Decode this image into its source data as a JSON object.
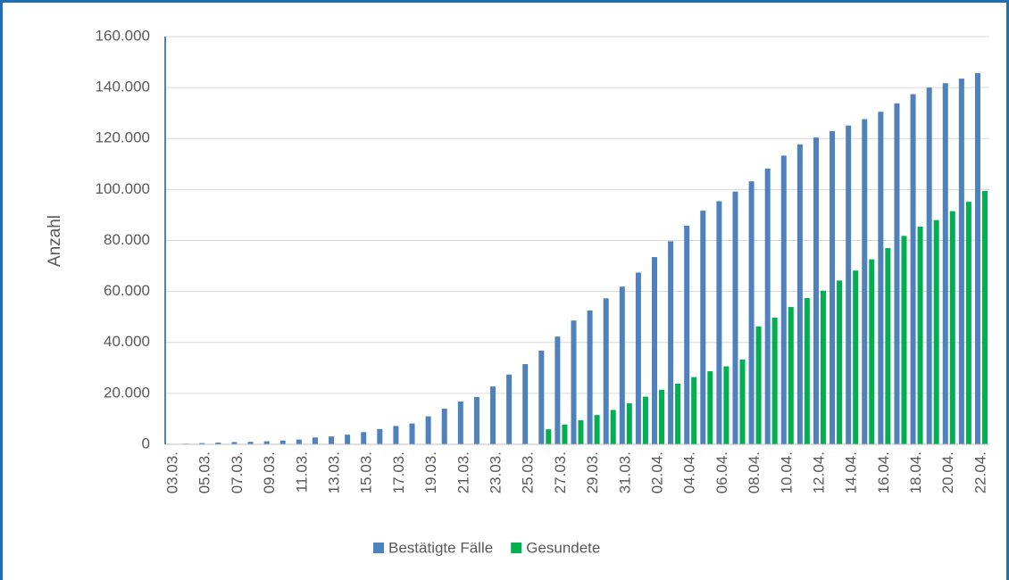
{
  "chart_data": {
    "type": "bar",
    "y_label": "Anzahl",
    "categories": [
      "03.03.",
      null,
      "05.03.",
      null,
      "07.03.",
      null,
      "09.03.",
      null,
      "11.03.",
      null,
      "13.03.",
      null,
      "15.03.",
      null,
      "17.03.",
      null,
      "19.03.",
      null,
      "21.03.",
      null,
      "23.03.",
      null,
      "25.03.",
      null,
      "27.03.",
      null,
      "29.03.",
      null,
      "31.03.",
      null,
      "02.04.",
      null,
      "04.04.",
      null,
      "06.04.",
      null,
      "08.04.",
      null,
      "10.04.",
      null,
      "12.04.",
      null,
      "14.04.",
      null,
      "16.04.",
      null,
      "18.04.",
      null,
      "20.04.",
      null,
      "22.04."
    ],
    "series": [
      {
        "name": "Bestätigte Fälle",
        "color": "#4f81bd",
        "values": [
          200,
          250,
          500,
          700,
          900,
          1000,
          1200,
          1500,
          1900,
          2700,
          3100,
          3800,
          4800,
          6000,
          7200,
          8200,
          11000,
          14000,
          16800,
          18600,
          22700,
          27400,
          31500,
          36800,
          42300,
          48600,
          52500,
          57300,
          61900,
          67400,
          73500,
          79700,
          85800,
          91700,
          95400,
          99200,
          103200,
          108200,
          113300,
          117700,
          120400,
          122900,
          125100,
          127600,
          130500,
          133800,
          137400,
          140000,
          141700,
          143500,
          145700
        ]
      },
      {
        "name": "Gesundete",
        "color": "#00b050",
        "values": [
          null,
          null,
          null,
          null,
          null,
          null,
          null,
          null,
          null,
          null,
          null,
          null,
          null,
          null,
          null,
          null,
          null,
          null,
          null,
          null,
          null,
          null,
          null,
          5900,
          7800,
          9500,
          11500,
          13500,
          16100,
          18700,
          21400,
          23800,
          26400,
          28700,
          30600,
          33300,
          46300,
          49700,
          53900,
          57400,
          60300,
          64300,
          68200,
          72600,
          77000,
          81800,
          85400,
          88000,
          91500,
          95200,
          99400
        ]
      }
    ],
    "ylim": [
      0,
      160000
    ],
    "yticks": [
      0,
      {
        "value": 20000,
        "label": "20.000"
      },
      {
        "value": 40000,
        "label": "40.000"
      },
      {
        "value": 60000,
        "label": "60.000"
      },
      {
        "value": 80000,
        "label": "80.000"
      },
      {
        "value": 100000,
        "label": "100.000"
      },
      {
        "value": 120000,
        "label": "120.000"
      },
      {
        "value": 140000,
        "label": "140.000"
      },
      {
        "value": 160000,
        "label": "160.000"
      }
    ],
    "grid": true,
    "legend": "bottom"
  }
}
